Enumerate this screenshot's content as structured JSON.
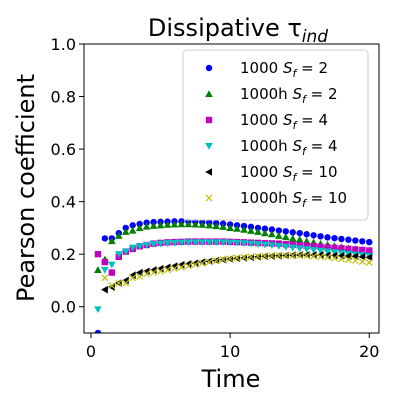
{
  "chart_data": {
    "type": "scatter",
    "title": "Dissipative τ",
    "title_subscript": "ind",
    "xlabel": "Time",
    "ylabel": "Pearson coefficient",
    "xlim": [
      -0.5,
      20.7
    ],
    "ylim": [
      -0.1,
      1.0
    ],
    "xticks": [
      0,
      10,
      20
    ],
    "yticks": [
      0.0,
      0.2,
      0.4,
      0.6,
      0.8,
      1.0
    ],
    "ytick_labels": [
      "0.0",
      "0.2",
      "0.4",
      "0.6",
      "0.8",
      "1.0"
    ],
    "grid": false,
    "legend_position": "top-right",
    "series": [
      {
        "name": "1000 S_f = 2",
        "label_prefix": "1000 ",
        "label_var": "S",
        "label_sub": "f",
        "label_val": " = 2",
        "marker": "circle",
        "color": "#0000ff",
        "x": [
          0.5,
          1,
          1.5,
          2,
          2.5,
          3,
          3.5,
          4,
          4.5,
          5,
          5.5,
          6,
          6.5,
          7,
          7.5,
          8,
          8.5,
          9,
          9.5,
          10,
          10.5,
          11,
          11.5,
          12,
          12.5,
          13,
          13.5,
          14,
          14.5,
          15,
          15.5,
          16,
          16.5,
          17,
          17.5,
          18,
          18.5,
          19,
          19.5,
          20
        ],
        "y": [
          -0.1,
          0.26,
          0.26,
          0.28,
          0.3,
          0.31,
          0.315,
          0.32,
          0.322,
          0.323,
          0.324,
          0.325,
          0.325,
          0.325,
          0.324,
          0.322,
          0.32,
          0.318,
          0.316,
          0.313,
          0.31,
          0.307,
          0.304,
          0.3,
          0.297,
          0.294,
          0.29,
          0.287,
          0.283,
          0.28,
          0.276,
          0.272,
          0.268,
          0.264,
          0.261,
          0.258,
          0.255,
          0.252,
          0.249,
          0.246
        ]
      },
      {
        "name": "1000h S_f = 2",
        "label_prefix": "1000h ",
        "label_var": "S",
        "label_sub": "f",
        "label_val": " = 2",
        "marker": "triangle-up",
        "color": "#008000",
        "x": [
          0.5,
          1,
          1.5,
          2,
          2.5,
          3,
          3.5,
          4,
          4.5,
          5,
          5.5,
          6,
          6.5,
          7,
          7.5,
          8,
          8.5,
          9,
          9.5,
          10,
          10.5,
          11,
          11.5,
          12,
          12.5,
          13,
          13.5,
          14,
          14.5,
          15,
          15.5,
          16,
          16.5,
          17,
          17.5,
          18,
          18.5,
          19,
          19.5,
          20
        ],
        "y": [
          0.14,
          0.18,
          0.25,
          0.27,
          0.285,
          0.29,
          0.3,
          0.305,
          0.308,
          0.31,
          0.312,
          0.313,
          0.314,
          0.314,
          0.313,
          0.312,
          0.31,
          0.307,
          0.304,
          0.3,
          0.297,
          0.293,
          0.289,
          0.285,
          0.28,
          0.276,
          0.27,
          0.265,
          0.26,
          0.256,
          0.25,
          0.245,
          0.24,
          0.236,
          0.231,
          0.227,
          0.223,
          0.219,
          0.216,
          0.213
        ]
      },
      {
        "name": "1000 S_f = 4",
        "label_prefix": "1000 ",
        "label_var": "S",
        "label_sub": "f",
        "label_val": " = 4",
        "marker": "square",
        "color": "#bf00bf",
        "x": [
          0.5,
          1,
          1.5,
          2,
          2.5,
          3,
          3.5,
          4,
          4.5,
          5,
          5.5,
          6,
          6.5,
          7,
          7.5,
          8,
          8.5,
          9,
          9.5,
          10,
          10.5,
          11,
          11.5,
          12,
          12.5,
          13,
          13.5,
          14,
          14.5,
          15,
          15.5,
          16,
          16.5,
          17,
          17.5,
          18,
          18.5,
          19,
          19.5,
          20
        ],
        "y": [
          0.2,
          0.17,
          0.13,
          0.19,
          0.21,
          0.22,
          0.23,
          0.235,
          0.24,
          0.243,
          0.245,
          0.246,
          0.247,
          0.248,
          0.248,
          0.248,
          0.248,
          0.248,
          0.248,
          0.247,
          0.246,
          0.245,
          0.244,
          0.243,
          0.242,
          0.241,
          0.24,
          0.238,
          0.236,
          0.234,
          0.232,
          0.23,
          0.228,
          0.226,
          0.224,
          0.222,
          0.22,
          0.218,
          0.216,
          0.214
        ]
      },
      {
        "name": "1000h S_f = 4",
        "label_prefix": "1000h ",
        "label_var": "S",
        "label_sub": "f",
        "label_val": " = 4",
        "marker": "triangle-down",
        "color": "#00bfbf",
        "x": [
          0.5,
          1,
          1.5,
          2,
          2.5,
          3,
          3.5,
          4,
          4.5,
          5,
          5.5,
          6,
          6.5,
          7,
          7.5,
          8,
          8.5,
          9,
          9.5,
          10,
          10.5,
          11,
          11.5,
          12,
          12.5,
          13,
          13.5,
          14,
          14.5,
          15,
          15.5,
          16,
          16.5,
          17,
          17.5,
          18,
          18.5,
          19,
          19.5,
          20
        ],
        "y": [
          -0.01,
          0.14,
          0.16,
          0.2,
          0.21,
          0.225,
          0.23,
          0.235,
          0.238,
          0.24,
          0.242,
          0.243,
          0.244,
          0.245,
          0.245,
          0.245,
          0.245,
          0.245,
          0.245,
          0.244,
          0.243,
          0.242,
          0.24,
          0.238,
          0.236,
          0.234,
          0.231,
          0.228,
          0.225,
          0.222,
          0.219,
          0.216,
          0.213,
          0.21,
          0.207,
          0.204,
          0.201,
          0.198,
          0.196,
          0.193
        ]
      },
      {
        "name": "1000 S_f = 10",
        "label_prefix": "1000 ",
        "label_var": "S",
        "label_sub": "f",
        "label_val": " = 10",
        "marker": "triangle-left",
        "color": "#000000",
        "x": [
          1,
          1.5,
          2,
          2.5,
          3,
          3.5,
          4,
          4.5,
          5,
          5.5,
          6,
          6.5,
          7,
          7.5,
          8,
          8.5,
          9,
          9.5,
          10,
          10.5,
          11,
          11.5,
          12,
          12.5,
          13,
          13.5,
          14,
          14.5,
          15,
          15.5,
          16,
          16.5,
          17,
          17.5,
          18,
          18.5,
          19,
          19.5,
          20
        ],
        "y": [
          0.065,
          0.075,
          0.09,
          0.1,
          0.12,
          0.13,
          0.135,
          0.14,
          0.145,
          0.15,
          0.155,
          0.16,
          0.163,
          0.166,
          0.17,
          0.173,
          0.176,
          0.179,
          0.182,
          0.184,
          0.186,
          0.188,
          0.19,
          0.192,
          0.193,
          0.194,
          0.195,
          0.196,
          0.197,
          0.197,
          0.197,
          0.197,
          0.196,
          0.195,
          0.194,
          0.193,
          0.192,
          0.19,
          0.188
        ]
      },
      {
        "name": "1000h S_f = 10",
        "label_prefix": "1000h ",
        "label_var": "S",
        "label_sub": "f",
        "label_val": " = 10",
        "marker": "x",
        "color": "#bfbf00",
        "x": [
          1,
          1.5,
          2,
          2.5,
          3,
          3.5,
          4,
          4.5,
          5,
          5.5,
          6,
          6.5,
          7,
          7.5,
          8,
          8.5,
          9,
          9.5,
          10,
          10.5,
          11,
          11.5,
          12,
          12.5,
          13,
          13.5,
          14,
          14.5,
          15,
          15.5,
          16,
          16.5,
          17,
          17.5,
          18,
          18.5,
          19,
          19.5,
          20
        ],
        "y": [
          0.11,
          0.08,
          0.09,
          0.09,
          0.11,
          0.115,
          0.125,
          0.13,
          0.135,
          0.14,
          0.145,
          0.15,
          0.155,
          0.16,
          0.165,
          0.17,
          0.175,
          0.18,
          0.183,
          0.186,
          0.188,
          0.19,
          0.192,
          0.193,
          0.194,
          0.195,
          0.195,
          0.195,
          0.195,
          0.194,
          0.192,
          0.19,
          0.188,
          0.185,
          0.182,
          0.179,
          0.176,
          0.172,
          0.168
        ]
      }
    ]
  }
}
